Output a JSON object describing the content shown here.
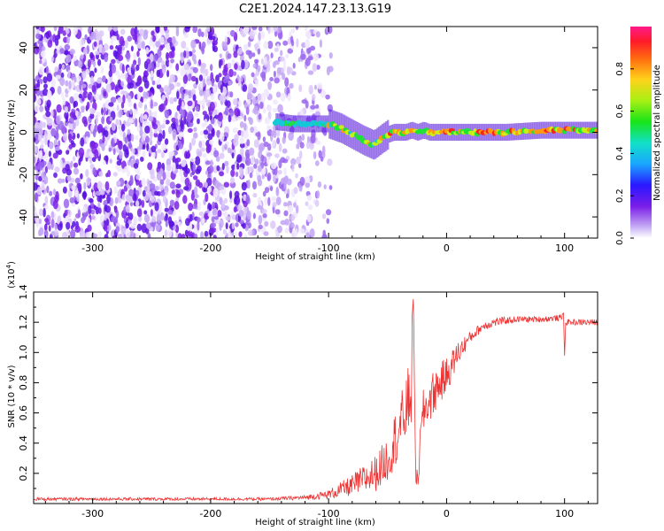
{
  "chart_data": [
    {
      "type": "heatmap",
      "title": "C2E1.2024.147.23.13.G19",
      "xlabel": "Height of straight line (km)",
      "ylabel": "Frequency (Hz)",
      "xlim": [
        -350,
        128
      ],
      "ylim": [
        -50,
        50
      ],
      "x_ticks": [
        "-300",
        "-200",
        "-100",
        "0",
        "100"
      ],
      "x_tick_values": [
        -300,
        -200,
        -100,
        0,
        100
      ],
      "y_ticks": [
        "-40",
        "-20",
        "0",
        "20",
        "40"
      ],
      "y_tick_values": [
        -40,
        -20,
        0,
        20,
        40
      ],
      "noise_region_km": [
        -350,
        -98
      ],
      "signal_track": {
        "x": [
          -145,
          -130,
          -110,
          -100,
          -90,
          -80,
          -70,
          -62,
          -55,
          -50,
          -45,
          -40,
          -35,
          -30,
          -25,
          -20,
          -15,
          -10,
          -5,
          0,
          20,
          50,
          80,
          100,
          128
        ],
        "freq": [
          5,
          4,
          4,
          4,
          2,
          -1,
          -4,
          -6,
          -3,
          -1,
          0,
          0,
          0,
          1,
          0,
          1,
          0,
          0,
          0,
          0,
          0,
          0,
          1,
          1,
          1
        ]
      },
      "colorbar": {
        "label": "Normalized spectral amplitude",
        "range": [
          0.0,
          1.0
        ],
        "ticks": [
          "0.0",
          "0.2",
          "0.4",
          "0.6",
          "0.8"
        ],
        "tick_values": [
          0.0,
          0.2,
          0.4,
          0.6,
          0.8
        ]
      }
    },
    {
      "type": "line",
      "xlabel": "Height of straight line (km)",
      "ylabel": "SNR (10 * v/v)",
      "multiplier": "(x10",
      "multiplier_exp": "4",
      "multiplier_close": ")",
      "color": "#ee3333",
      "xlim": [
        -350,
        128
      ],
      "ylim": [
        0,
        1.4
      ],
      "x_ticks": [
        "-300",
        "-200",
        "-100",
        "0",
        "100"
      ],
      "x_tick_values": [
        -300,
        -200,
        -100,
        0,
        100
      ],
      "y_ticks": [
        "0.2",
        "0.4",
        "0.6",
        "0.8",
        "1.0",
        "1.2",
        "1.4"
      ],
      "y_tick_values": [
        0.2,
        0.4,
        0.6,
        0.8,
        1.0,
        1.2,
        1.4
      ],
      "x": [
        -350,
        -300,
        -250,
        -200,
        -150,
        -120,
        -100,
        -90,
        -80,
        -70,
        -60,
        -50,
        -45,
        -40,
        -35,
        -30,
        -28,
        -26,
        -20,
        -10,
        0,
        10,
        20,
        30,
        40,
        60,
        80,
        98,
        99,
        100,
        101,
        110,
        128
      ],
      "y": [
        0.03,
        0.03,
        0.03,
        0.03,
        0.03,
        0.04,
        0.06,
        0.09,
        0.12,
        0.16,
        0.2,
        0.3,
        0.4,
        0.5,
        0.6,
        0.75,
        1.4,
        0.05,
        0.6,
        0.75,
        0.85,
        1.0,
        1.1,
        1.17,
        1.2,
        1.22,
        1.22,
        1.23,
        1.3,
        0.98,
        1.2,
        1.2,
        1.2
      ],
      "noise": [
        0.01,
        0.01,
        0.01,
        0.01,
        0.01,
        0.015,
        0.03,
        0.05,
        0.07,
        0.1,
        0.12,
        0.15,
        0.18,
        0.2,
        0.22,
        0.25,
        0.2,
        0.1,
        0.15,
        0.15,
        0.12,
        0.08,
        0.04,
        0.03,
        0.03,
        0.02,
        0.02,
        0.02,
        0.02,
        0.02,
        0.02,
        0.02,
        0.02
      ]
    }
  ]
}
